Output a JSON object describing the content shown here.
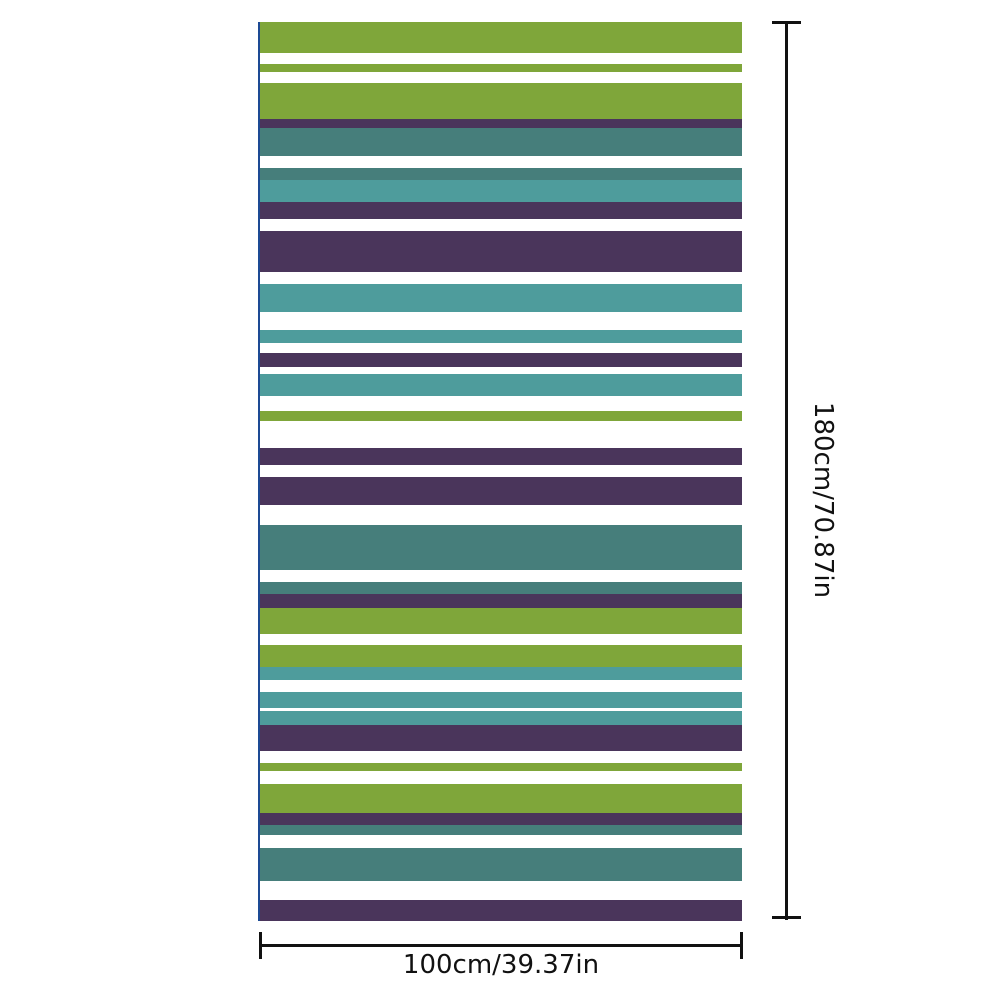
{
  "product": {
    "width_label": "100cm/39.37in",
    "height_label": "180cm/70.87in"
  },
  "colors": {
    "green": "#7fa63a",
    "purple": "#4a355b",
    "dark_teal": "#467e7b",
    "teal": "#4e9c9c",
    "edge": "#1d4a94"
  },
  "stripe_sequence": [
    "green",
    "green",
    "green",
    "purple",
    "dark_teal",
    "dark_teal",
    "teal",
    "purple",
    "purple",
    "teal",
    "teal",
    "purple",
    "teal",
    "green",
    "purple",
    "purple",
    "dark_teal",
    "dark_teal",
    "purple",
    "green",
    "green",
    "teal",
    "teal",
    "teal",
    "purple",
    "green",
    "green",
    "purple",
    "dark_teal",
    "dark_teal",
    "purple"
  ]
}
